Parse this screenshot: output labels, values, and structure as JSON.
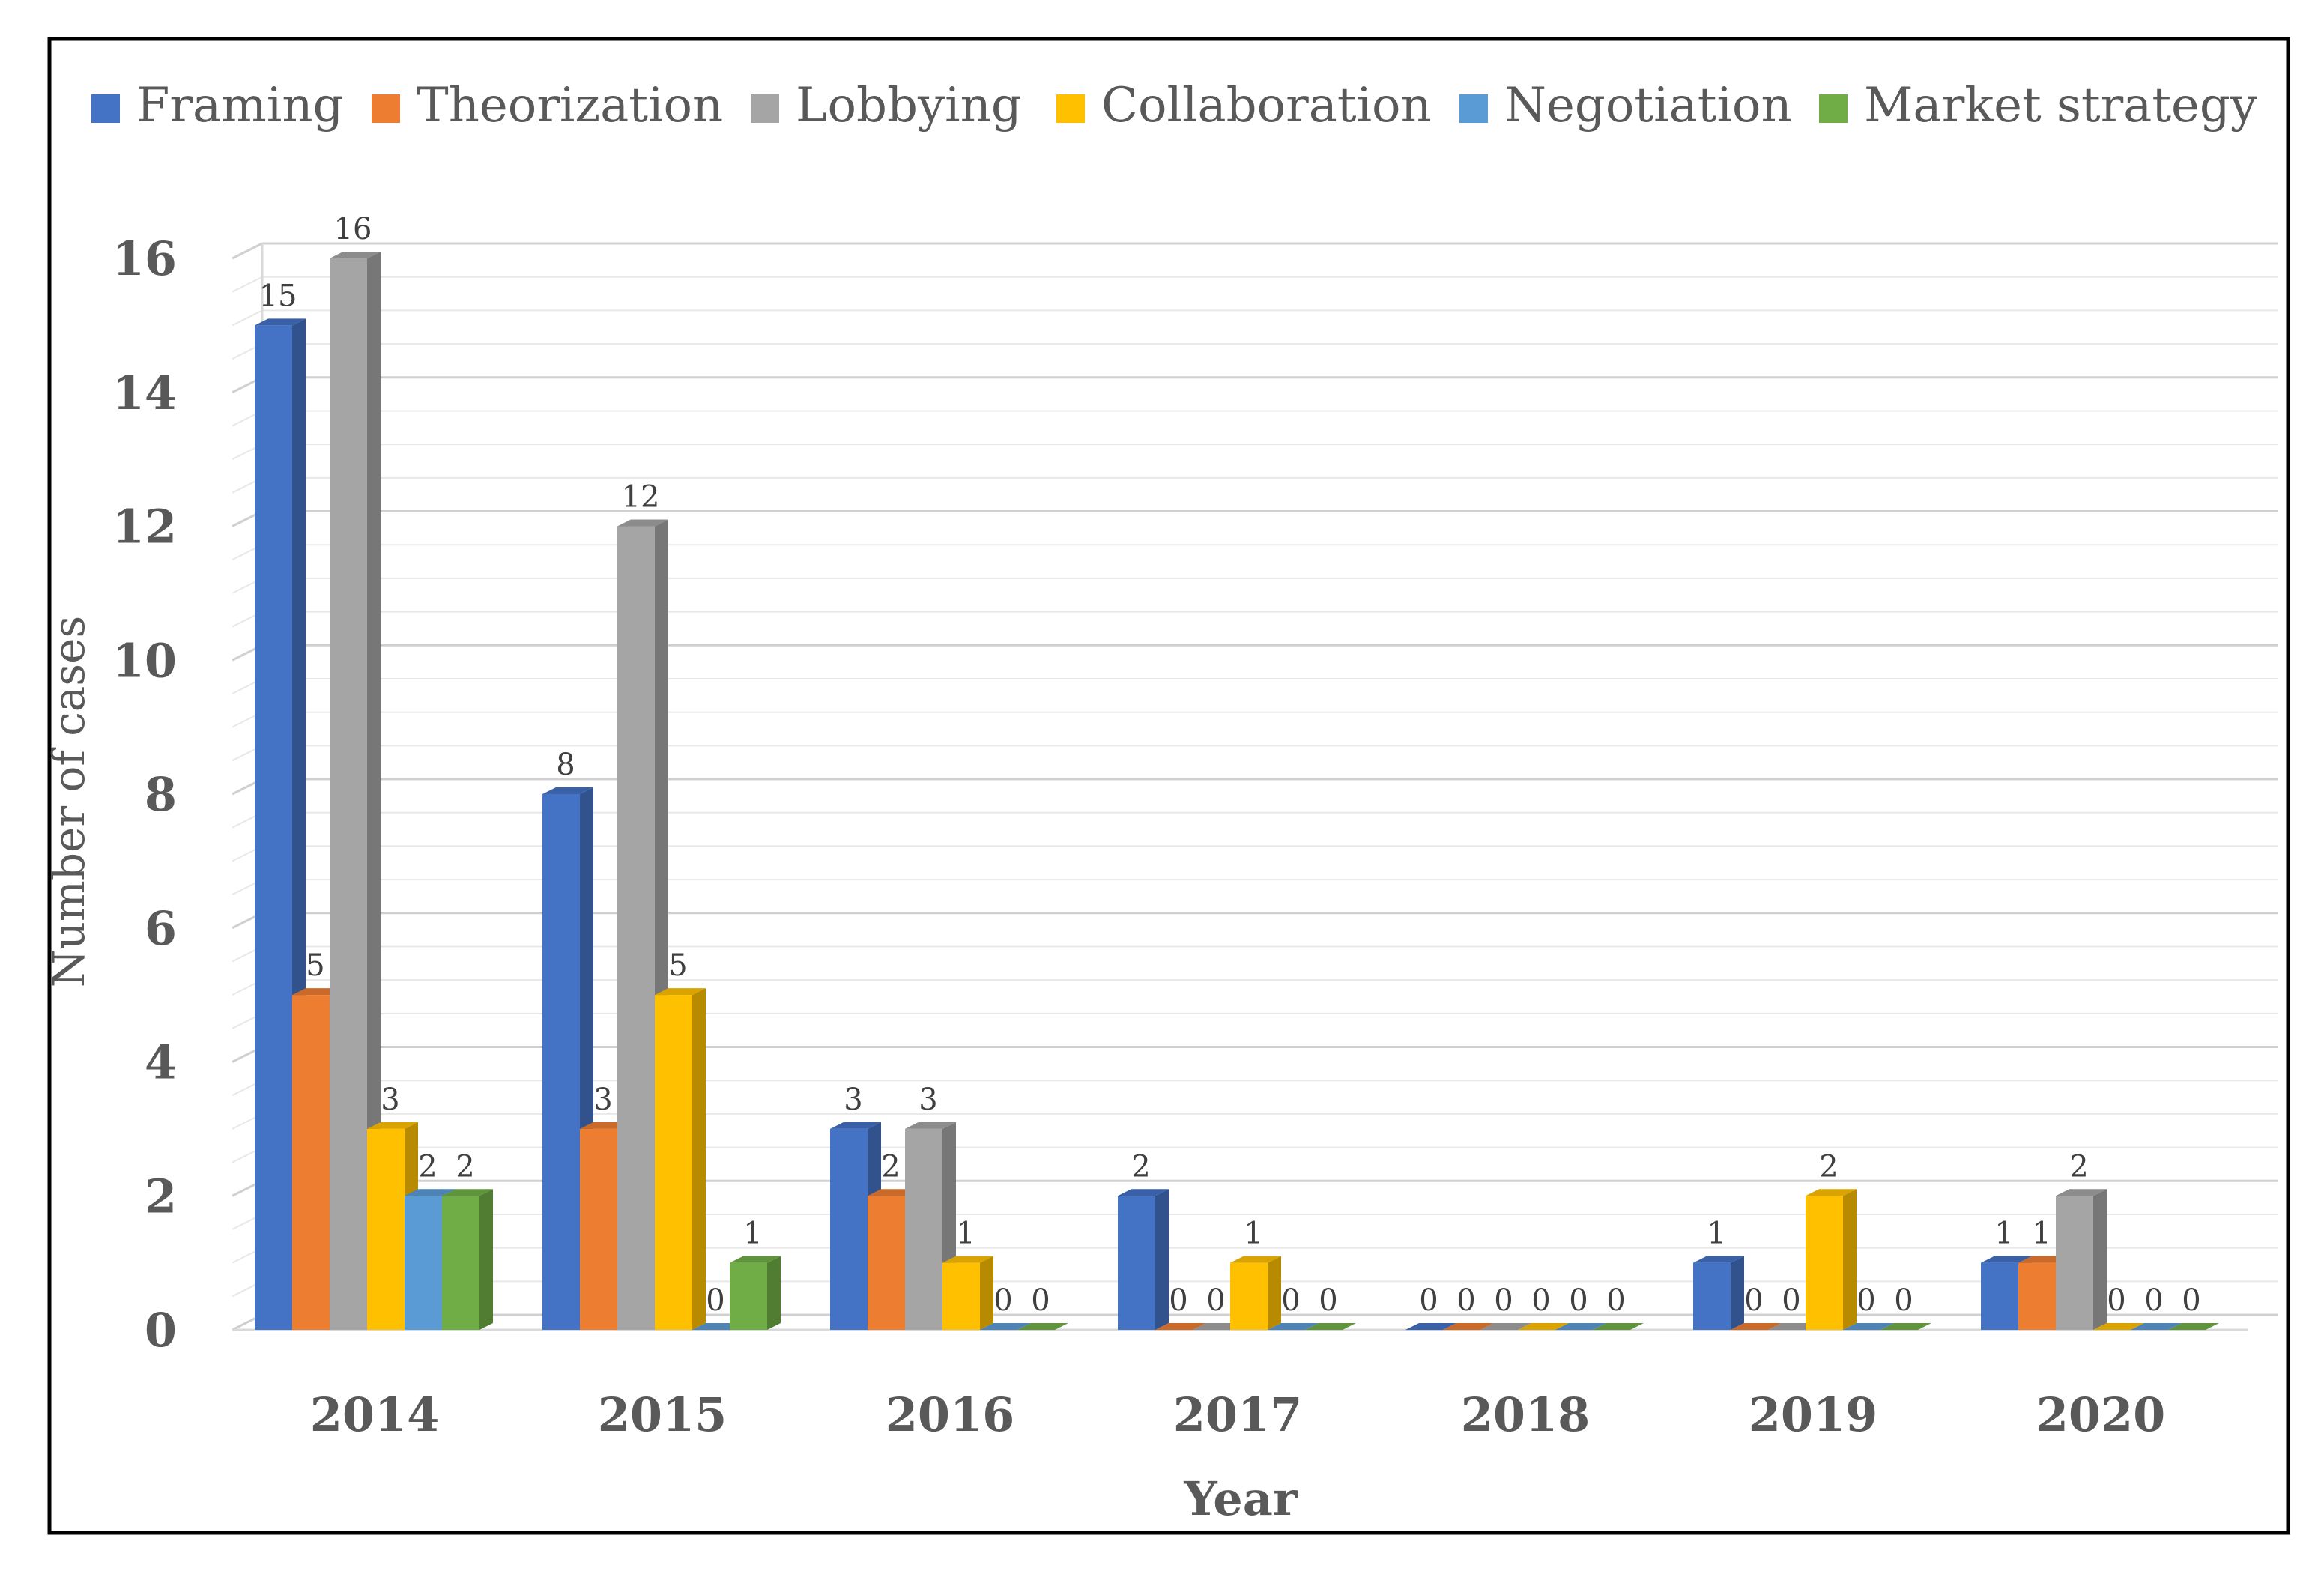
{
  "chart_data": {
    "type": "bar",
    "categories": [
      "2014",
      "2015",
      "2016",
      "2017",
      "2018",
      "2019",
      "2020"
    ],
    "series": [
      {
        "name": "Framing",
        "color": "#4472C4",
        "values": [
          15,
          8,
          3,
          2,
          0,
          1,
          1
        ]
      },
      {
        "name": "Theorization",
        "color": "#ED7D31",
        "values": [
          5,
          3,
          2,
          0,
          0,
          0,
          1
        ]
      },
      {
        "name": "Lobbying",
        "color": "#A5A5A5",
        "values": [
          16,
          12,
          3,
          0,
          0,
          0,
          2
        ]
      },
      {
        "name": "Collaboration",
        "color": "#FFC000",
        "values": [
          3,
          5,
          1,
          1,
          0,
          2,
          0
        ]
      },
      {
        "name": "Negotiation",
        "color": "#5B9BD5",
        "values": [
          2,
          0,
          0,
          0,
          0,
          0,
          0
        ]
      },
      {
        "name": "Market strategy",
        "color": "#70AD47",
        "values": [
          2,
          1,
          0,
          0,
          0,
          0,
          0
        ]
      }
    ],
    "xlabel": "Year",
    "ylabel": "Number of cases",
    "ylim": [
      0,
      16
    ],
    "yticks": [
      0,
      2,
      4,
      6,
      8,
      10,
      12,
      14,
      16
    ],
    "grid": true,
    "legend_position": "top",
    "style": "3d-clustered-column"
  }
}
